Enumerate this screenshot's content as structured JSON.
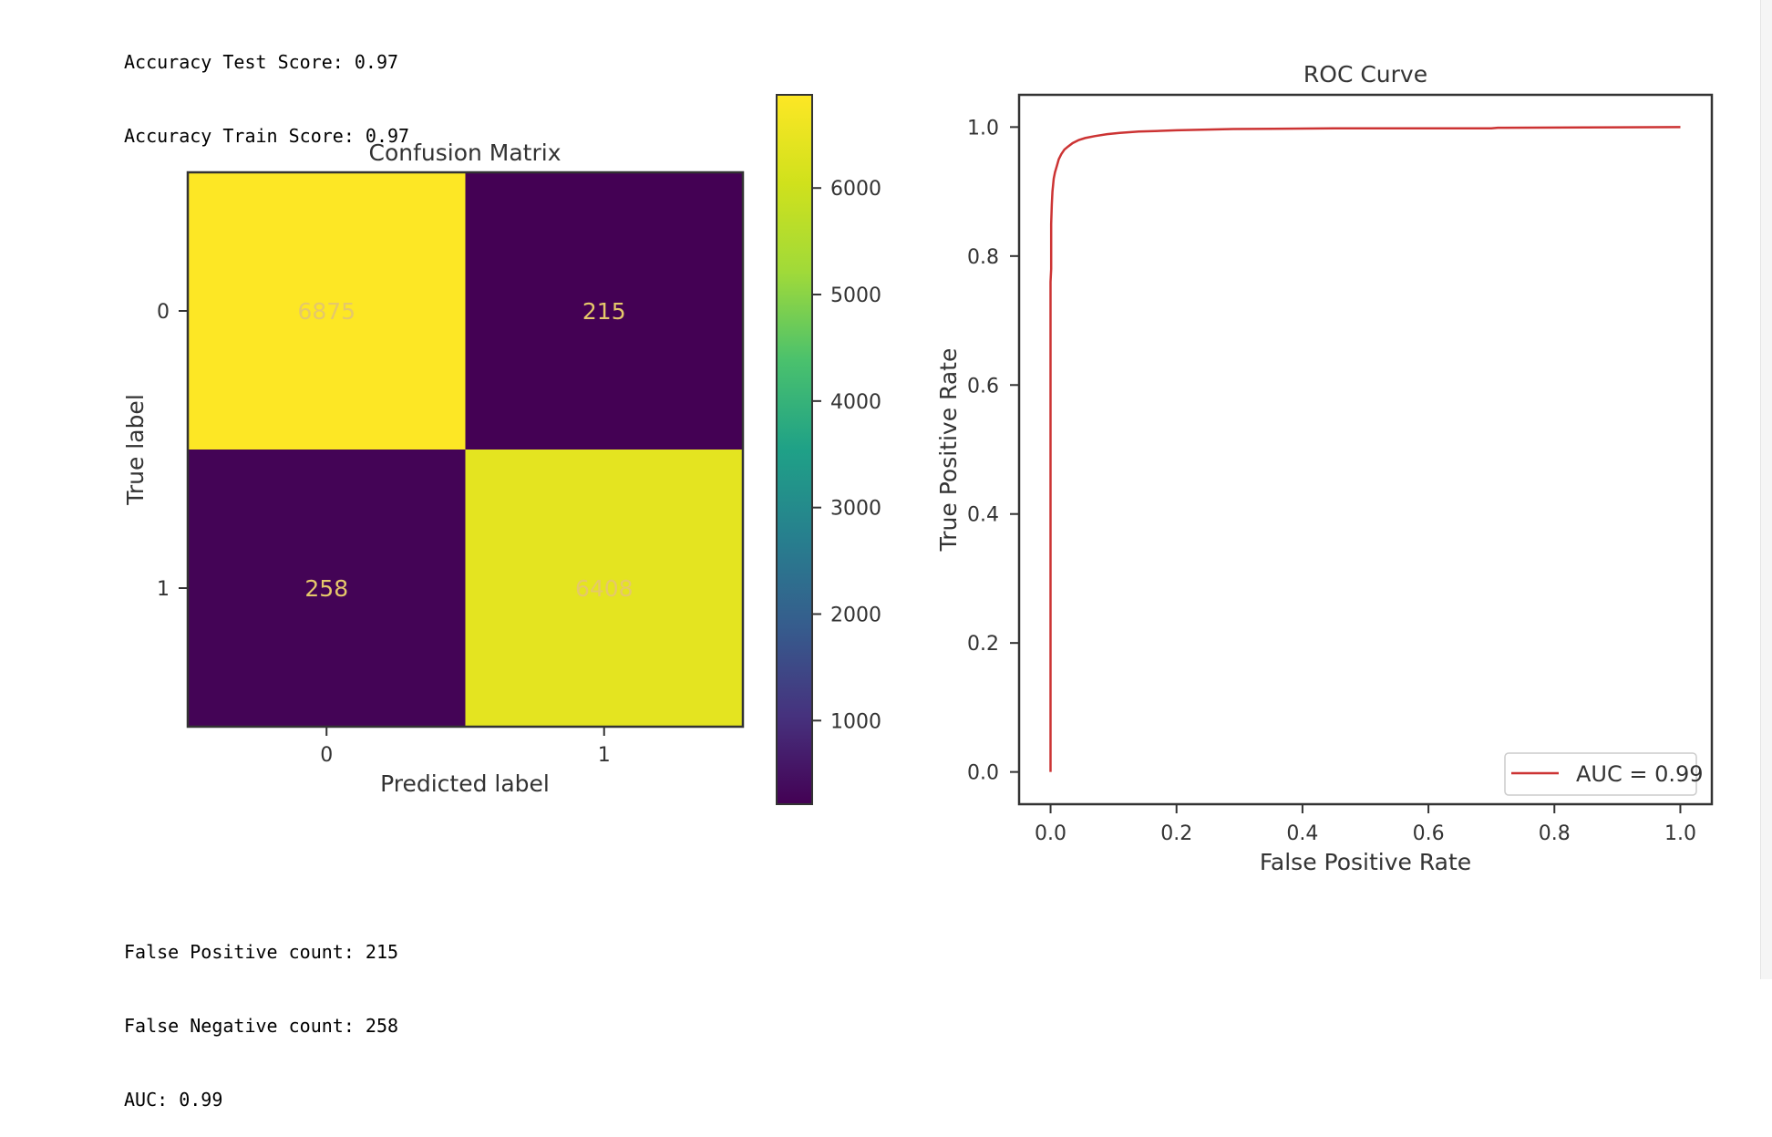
{
  "output_top": [
    "Accuracy Test Score: 0.97",
    "Accuracy Train Score: 0.97"
  ],
  "output_bottom": [
    "False Positive count: 215",
    "False Negative count: 258",
    "AUC: 0.99"
  ],
  "chart_data": [
    {
      "type": "heatmap",
      "title": "Confusion Matrix",
      "xlabel": "Predicted label",
      "ylabel": "True label",
      "x_categories": [
        "0",
        "1"
      ],
      "y_categories": [
        "0",
        "1"
      ],
      "values": [
        [
          6875,
          215
        ],
        [
          258,
          6408
        ]
      ],
      "colormap": "viridis",
      "colorbar": {
        "ticks": [
          1000,
          2000,
          3000,
          4000,
          5000,
          6000
        ],
        "range": [
          215,
          6875
        ]
      },
      "cell_text_color": "#e5c86a"
    },
    {
      "type": "line",
      "title": "ROC Curve",
      "xlabel": "False Positive Rate",
      "ylabel": "True Positive Rate",
      "xlim": [
        -0.05,
        1.05
      ],
      "ylim": [
        -0.05,
        1.05
      ],
      "xticks": [
        "0.0",
        "0.2",
        "0.4",
        "0.6",
        "0.8",
        "1.0"
      ],
      "yticks": [
        "0.0",
        "0.2",
        "0.4",
        "0.6",
        "0.8",
        "1.0"
      ],
      "legend_position": "lower-right",
      "series": [
        {
          "name": "AUC = 0.99",
          "color": "#cc3333",
          "x": [
            0.0,
            0.0,
            0.001,
            0.001,
            0.002,
            0.003,
            0.005,
            0.007,
            0.01,
            0.013,
            0.017,
            0.022,
            0.028,
            0.035,
            0.045,
            0.055,
            0.07,
            0.09,
            0.11,
            0.14,
            0.2,
            0.29,
            0.45,
            0.7,
            0.71,
            0.85,
            1.0
          ],
          "y": [
            0.0,
            0.76,
            0.78,
            0.85,
            0.88,
            0.9,
            0.92,
            0.93,
            0.94,
            0.95,
            0.958,
            0.965,
            0.97,
            0.975,
            0.98,
            0.983,
            0.986,
            0.989,
            0.991,
            0.993,
            0.995,
            0.997,
            0.998,
            0.998,
            0.999,
            0.9995,
            1.0
          ]
        }
      ]
    }
  ]
}
